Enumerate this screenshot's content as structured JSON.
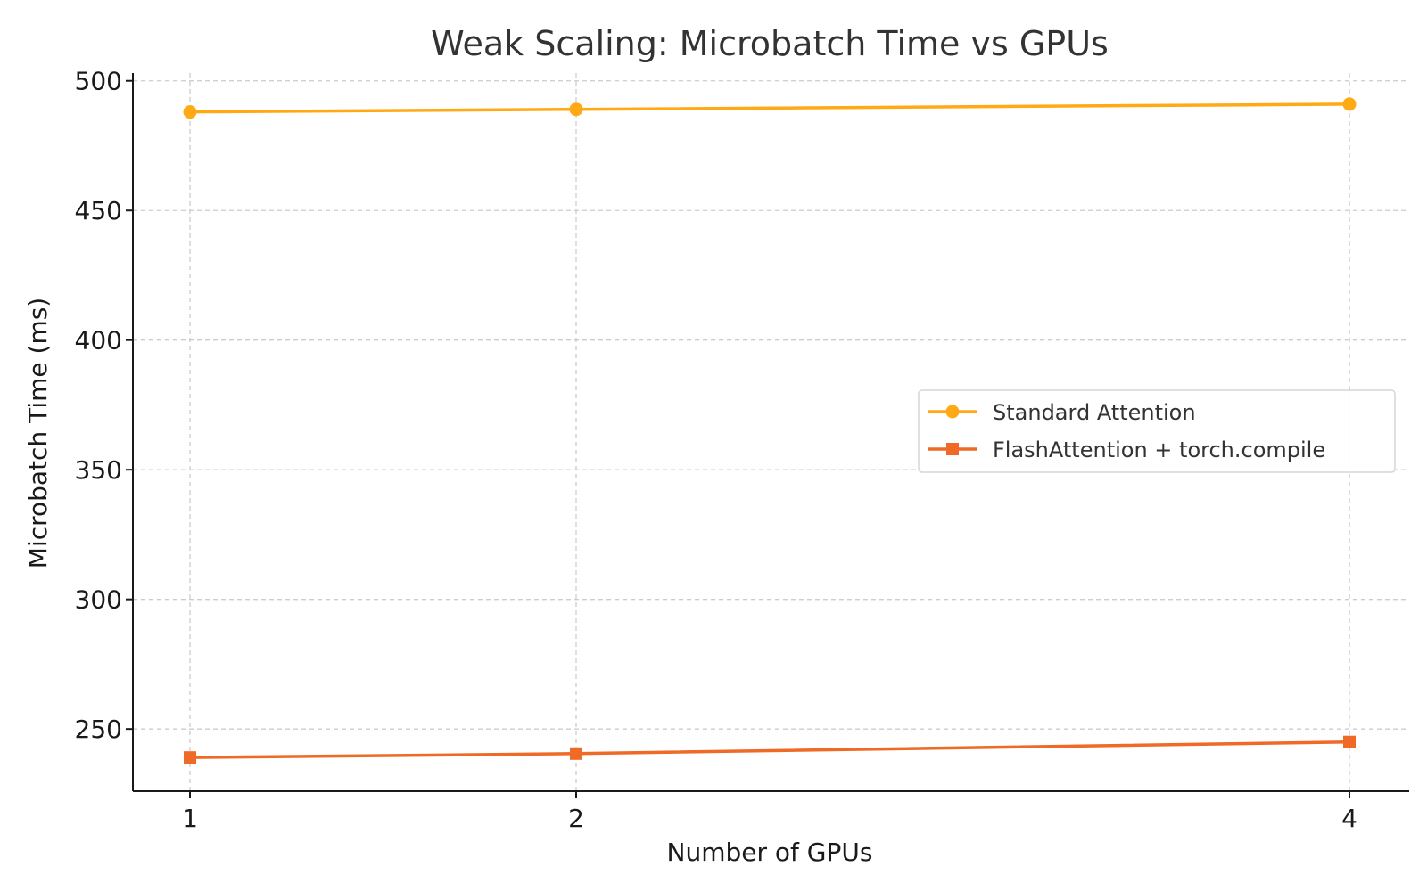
{
  "chart_data": {
    "type": "line",
    "title": "Weak Scaling: Microbatch Time vs GPUs",
    "xlabel": "Number of GPUs",
    "ylabel": "Microbatch Time (ms)",
    "x": [
      1,
      2,
      4
    ],
    "x_tick_labels": [
      "1",
      "2",
      "4"
    ],
    "ylim": [
      226,
      503
    ],
    "y_ticks": [
      250,
      300,
      350,
      400,
      450,
      500
    ],
    "y_tick_labels": [
      "250",
      "300",
      "350",
      "400",
      "450",
      "500"
    ],
    "grid": true,
    "legend_position": "center-right",
    "series": [
      {
        "name": "Standard Attention",
        "values": [
          488,
          489,
          491
        ],
        "color": "#FFA914",
        "marker": "circle"
      },
      {
        "name": "FlashAttention + torch.compile",
        "values": [
          239,
          240.5,
          245
        ],
        "color": "#EE6A26",
        "marker": "square"
      }
    ]
  }
}
